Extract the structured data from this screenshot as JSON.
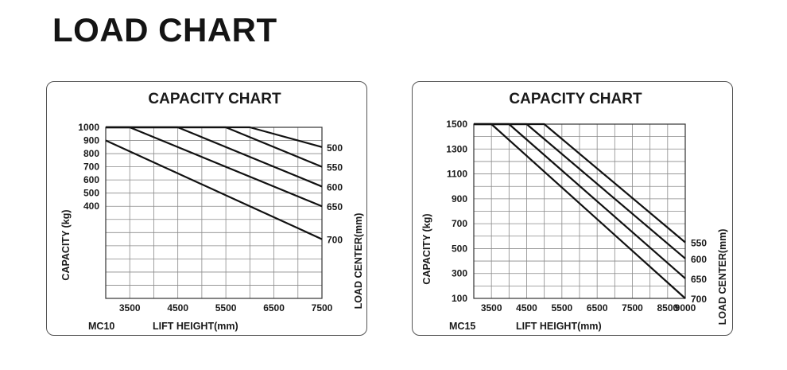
{
  "page": {
    "title": "LOAD CHART"
  },
  "chart_data": [
    {
      "type": "line",
      "model": "MC10",
      "title": "CAPACITY CHART",
      "xlabel": "LIFT HEIGHT(mm)",
      "ylabel": "CAPACITY (kg)",
      "y2label": "LOAD CENTER(mm)",
      "xlim": [
        3000,
        7500
      ],
      "ylim": [
        -300,
        1000
      ],
      "x_ticks": [
        "3500",
        "4500",
        "5500",
        "6500",
        "7500"
      ],
      "x_tick_values": [
        3500,
        4500,
        5500,
        6500,
        7500
      ],
      "y_ticks": [
        "1000",
        "900",
        "800",
        "700",
        "600",
        "500",
        "400"
      ],
      "y_tick_values": [
        1000,
        900,
        800,
        700,
        600,
        500,
        400
      ],
      "grid_x_step": 500,
      "grid_y_step": 100,
      "grid": true,
      "series": [
        {
          "name": "500",
          "x": [
            3000,
            6000,
            7500
          ],
          "y": [
            1000,
            1000,
            850
          ]
        },
        {
          "name": "550",
          "x": [
            3000,
            5500,
            7500
          ],
          "y": [
            1000,
            1000,
            700
          ]
        },
        {
          "name": "600",
          "x": [
            3000,
            4500,
            7500
          ],
          "y": [
            1000,
            1000,
            550
          ]
        },
        {
          "name": "650",
          "x": [
            3000,
            3500,
            7500
          ],
          "y": [
            1000,
            1000,
            400
          ]
        },
        {
          "name": "700",
          "x": [
            3000,
            7500
          ],
          "y": [
            900,
            150
          ]
        }
      ]
    },
    {
      "type": "line",
      "model": "MC15",
      "title": "CAPACITY CHART",
      "xlabel": "LIFT HEIGHT(mm)",
      "ylabel": "CAPACITY (kg)",
      "y2label": "LOAD CENTER(mm)",
      "xlim": [
        3000,
        9000
      ],
      "ylim": [
        100,
        1500
      ],
      "x_ticks": [
        "3500",
        "4500",
        "5500",
        "6500",
        "7500",
        "8500",
        "9000"
      ],
      "x_tick_values": [
        3500,
        4500,
        5500,
        6500,
        7500,
        8500,
        9000
      ],
      "y_ticks": [
        "1500",
        "1300",
        "1100",
        "900",
        "700",
        "500",
        "300",
        "100"
      ],
      "y_tick_values": [
        1500,
        1300,
        1100,
        900,
        700,
        500,
        300,
        100
      ],
      "grid_x_step": 500,
      "grid_y_step": 100,
      "grid": true,
      "series": [
        {
          "name": "550",
          "x": [
            3000,
            5000,
            9000
          ],
          "y": [
            1500,
            1500,
            550
          ]
        },
        {
          "name": "600",
          "x": [
            3000,
            4500,
            9000
          ],
          "y": [
            1500,
            1500,
            420
          ]
        },
        {
          "name": "650",
          "x": [
            3000,
            4000,
            9000
          ],
          "y": [
            1500,
            1500,
            260
          ]
        },
        {
          "name": "700",
          "x": [
            3000,
            3500,
            9000
          ],
          "y": [
            1500,
            1500,
            100
          ]
        }
      ]
    }
  ]
}
